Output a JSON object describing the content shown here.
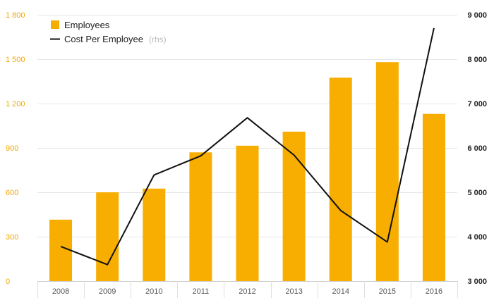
{
  "chart_data": {
    "type": "bar",
    "categories": [
      "2008",
      "2009",
      "2010",
      "2011",
      "2012",
      "2013",
      "2014",
      "2015",
      "2016"
    ],
    "series": [
      {
        "name": "Employees",
        "type": "bar",
        "axis": "left",
        "color": "#f7ae00",
        "values": [
          415,
          600,
          625,
          870,
          915,
          1010,
          1375,
          1480,
          1130
        ]
      },
      {
        "name": "Cost Per Employee",
        "type": "line",
        "axis": "right",
        "color": "#111111",
        "values": [
          3780,
          3370,
          5390,
          5820,
          6680,
          5840,
          4590,
          3880,
          8700
        ]
      }
    ],
    "y_left": {
      "ylim": [
        0,
        1800
      ],
      "ticks": [
        0,
        300,
        600,
        900,
        1200,
        1500,
        1800
      ],
      "tick_labels": [
        "0",
        "300",
        "600",
        "900",
        "1 200",
        "1 500",
        "1 800"
      ],
      "color": "#f0a800"
    },
    "y_right": {
      "ylim": [
        3000,
        9000
      ],
      "ticks": [
        3000,
        4000,
        5000,
        6000,
        7000,
        8000,
        9000
      ],
      "tick_labels": [
        "3 000",
        "4 000",
        "5 000",
        "6 000",
        "7 000",
        "8 000",
        "9 000"
      ],
      "color": "#222222"
    },
    "grid": true,
    "legend": {
      "placement": "top-left",
      "items": [
        {
          "label": "Employees",
          "suffix": "",
          "marker": "square"
        },
        {
          "label": "Cost Per Employee",
          "suffix": "(rhs)",
          "marker": "line"
        }
      ]
    }
  }
}
